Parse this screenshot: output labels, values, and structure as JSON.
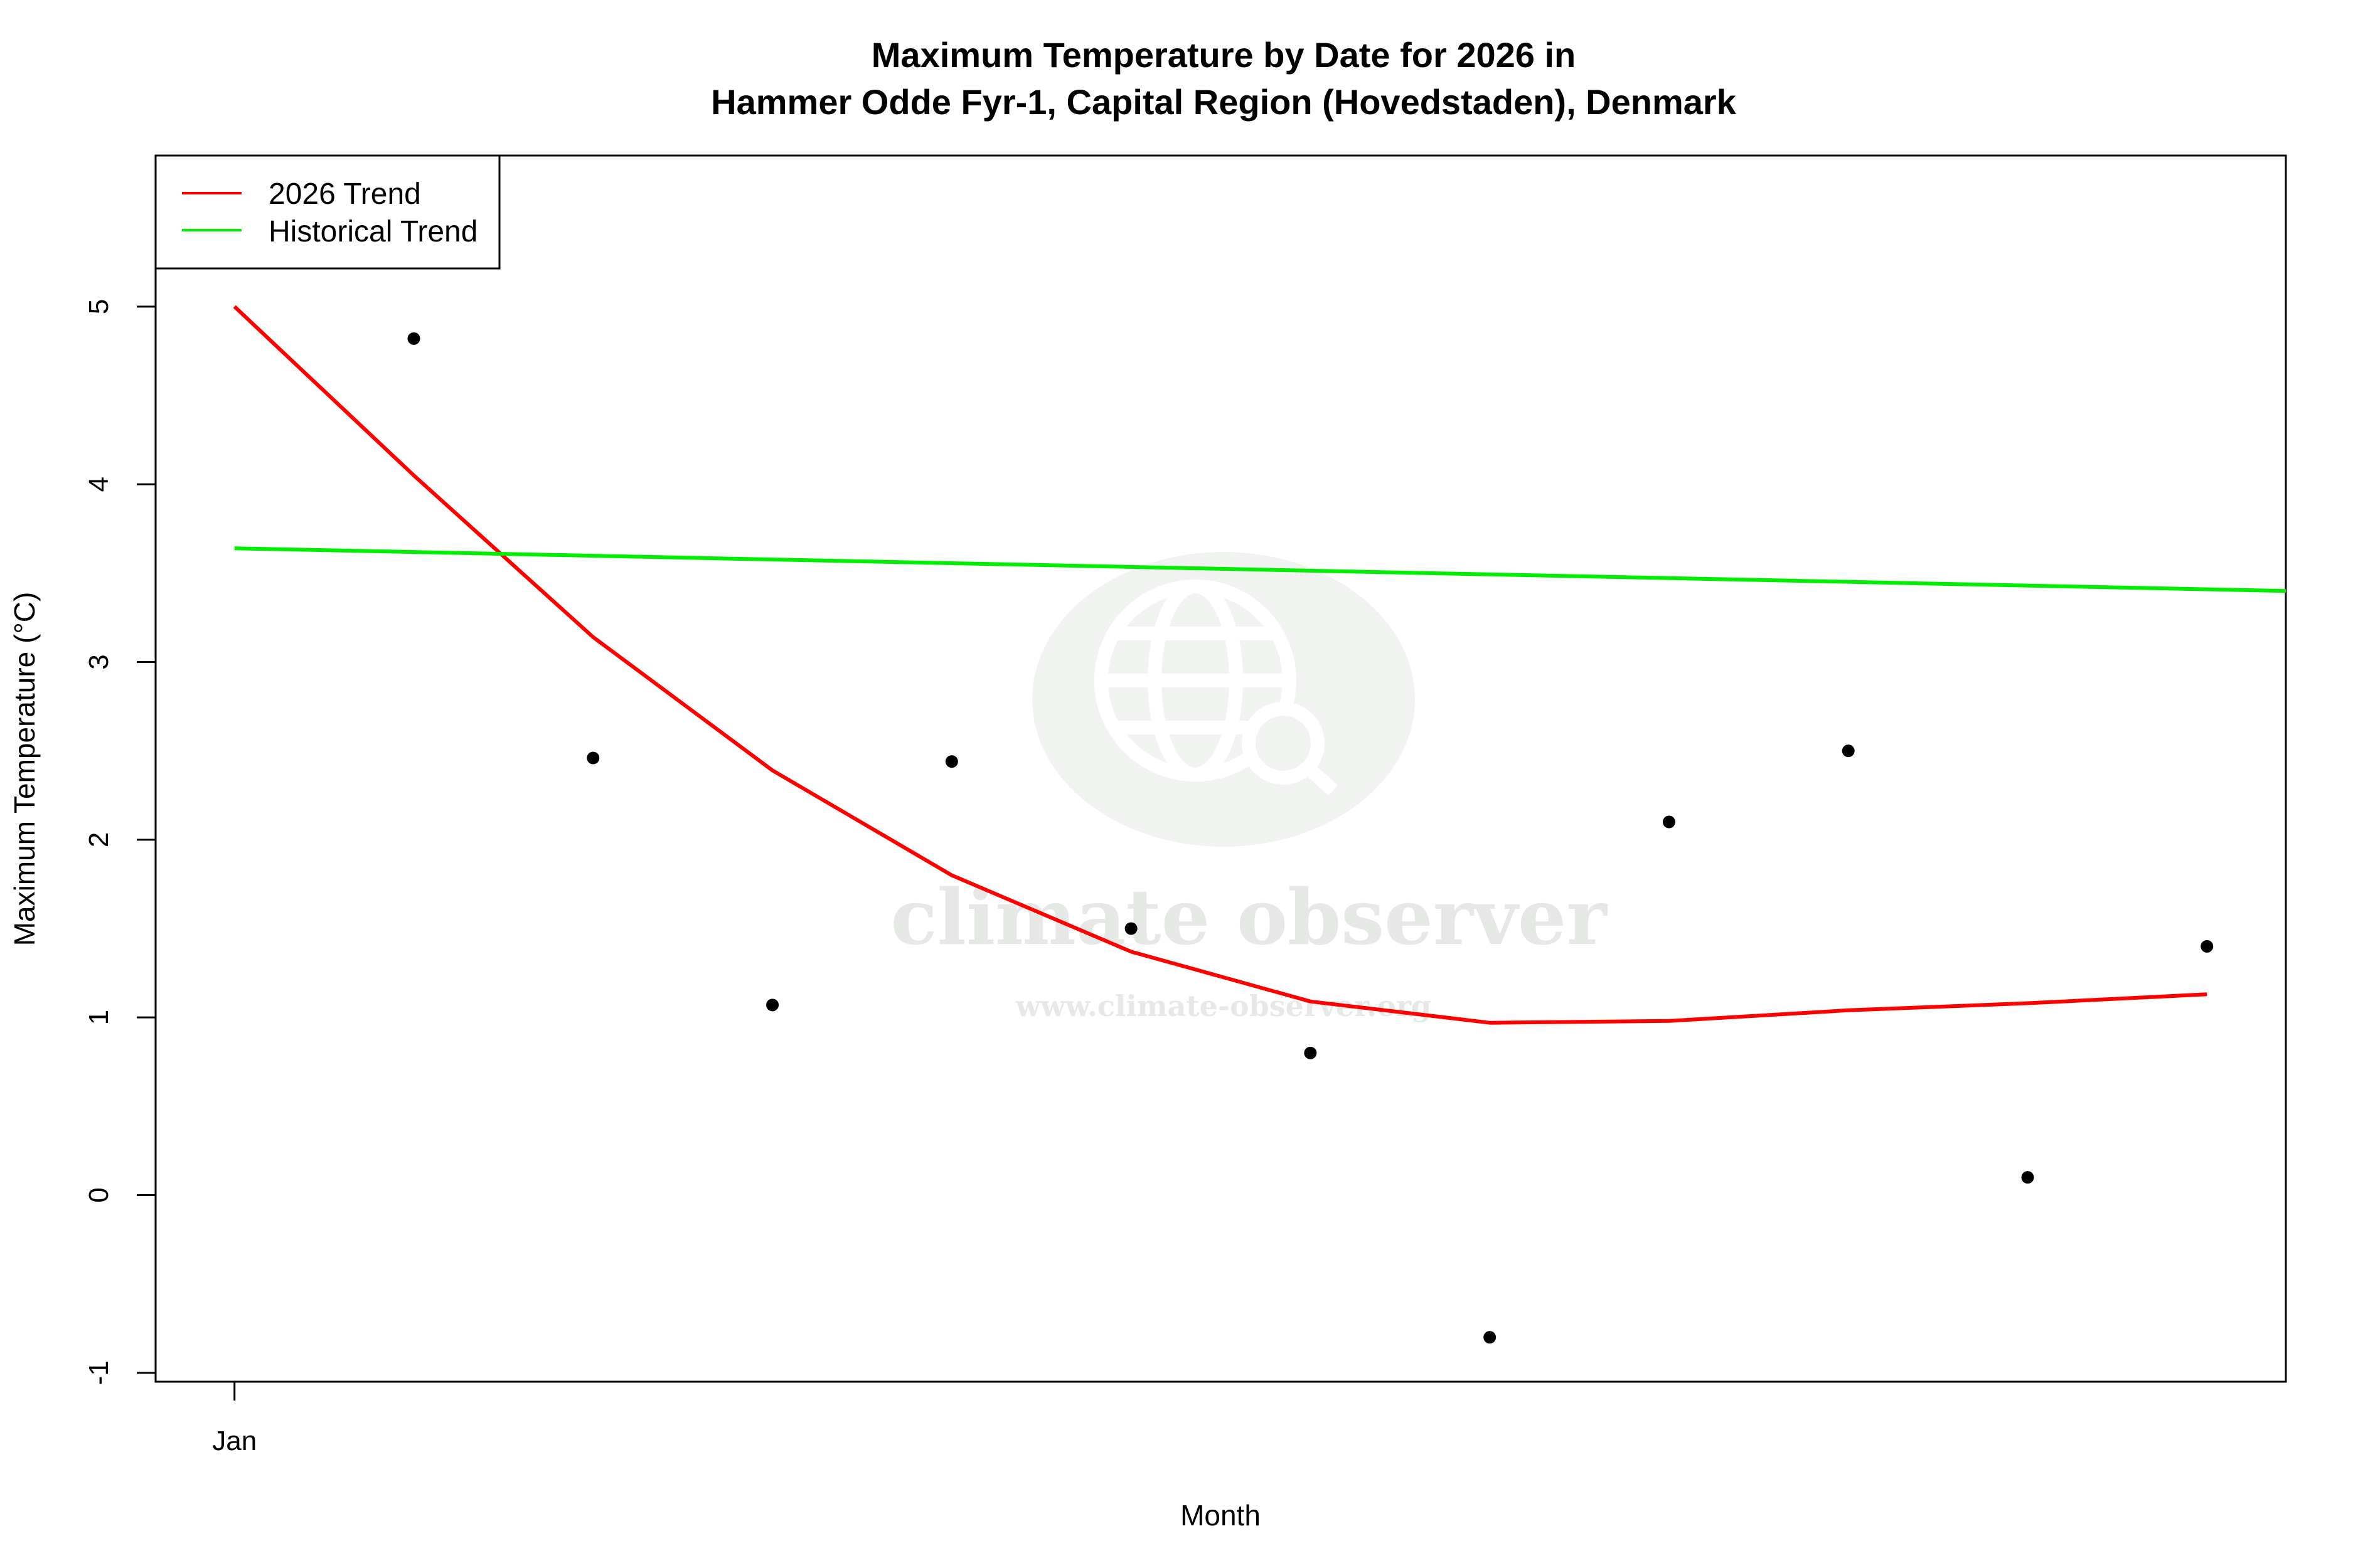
{
  "chart_data": {
    "type": "line",
    "title_line1": "Maximum Temperature by Date for 2026 in",
    "title_line2": "Hammer Odde Fyr-1, Capital Region (Hovedstaden), Denmark",
    "xlabel": "Month",
    "ylabel": "Maximum Temperature (°C)",
    "ylim": [
      -1.05,
      5.85
    ],
    "xlim": [
      0.56,
      12.44
    ],
    "x_ticks": [
      {
        "x": 1,
        "label": "Jan"
      }
    ],
    "y_ticks": [
      -1,
      0,
      1,
      2,
      3,
      4,
      5
    ],
    "grid": false,
    "legend_position": "top-left",
    "points": {
      "x": [
        2,
        3,
        4,
        5,
        6,
        7,
        8,
        9,
        10,
        11,
        12
      ],
      "y": [
        4.82,
        2.46,
        1.07,
        2.44,
        1.5,
        0.8,
        -0.8,
        2.1,
        2.5,
        0.1,
        1.4
      ],
      "color": "#000000"
    },
    "series": [
      {
        "name": "2026 Trend",
        "color": "#ff0000",
        "x": [
          1,
          2,
          3,
          4,
          5,
          6,
          7,
          8,
          9,
          10,
          11,
          12
        ],
        "y": [
          5.0,
          4.05,
          3.14,
          2.39,
          1.8,
          1.37,
          1.09,
          0.97,
          0.98,
          1.04,
          1.08,
          1.13
        ]
      },
      {
        "name": "Historical Trend",
        "color": "#00ee00",
        "x": [
          1,
          12.44
        ],
        "y": [
          3.64,
          3.4
        ]
      }
    ]
  },
  "watermark": {
    "name": "climate observer",
    "url": "www.climate-observer.org"
  }
}
